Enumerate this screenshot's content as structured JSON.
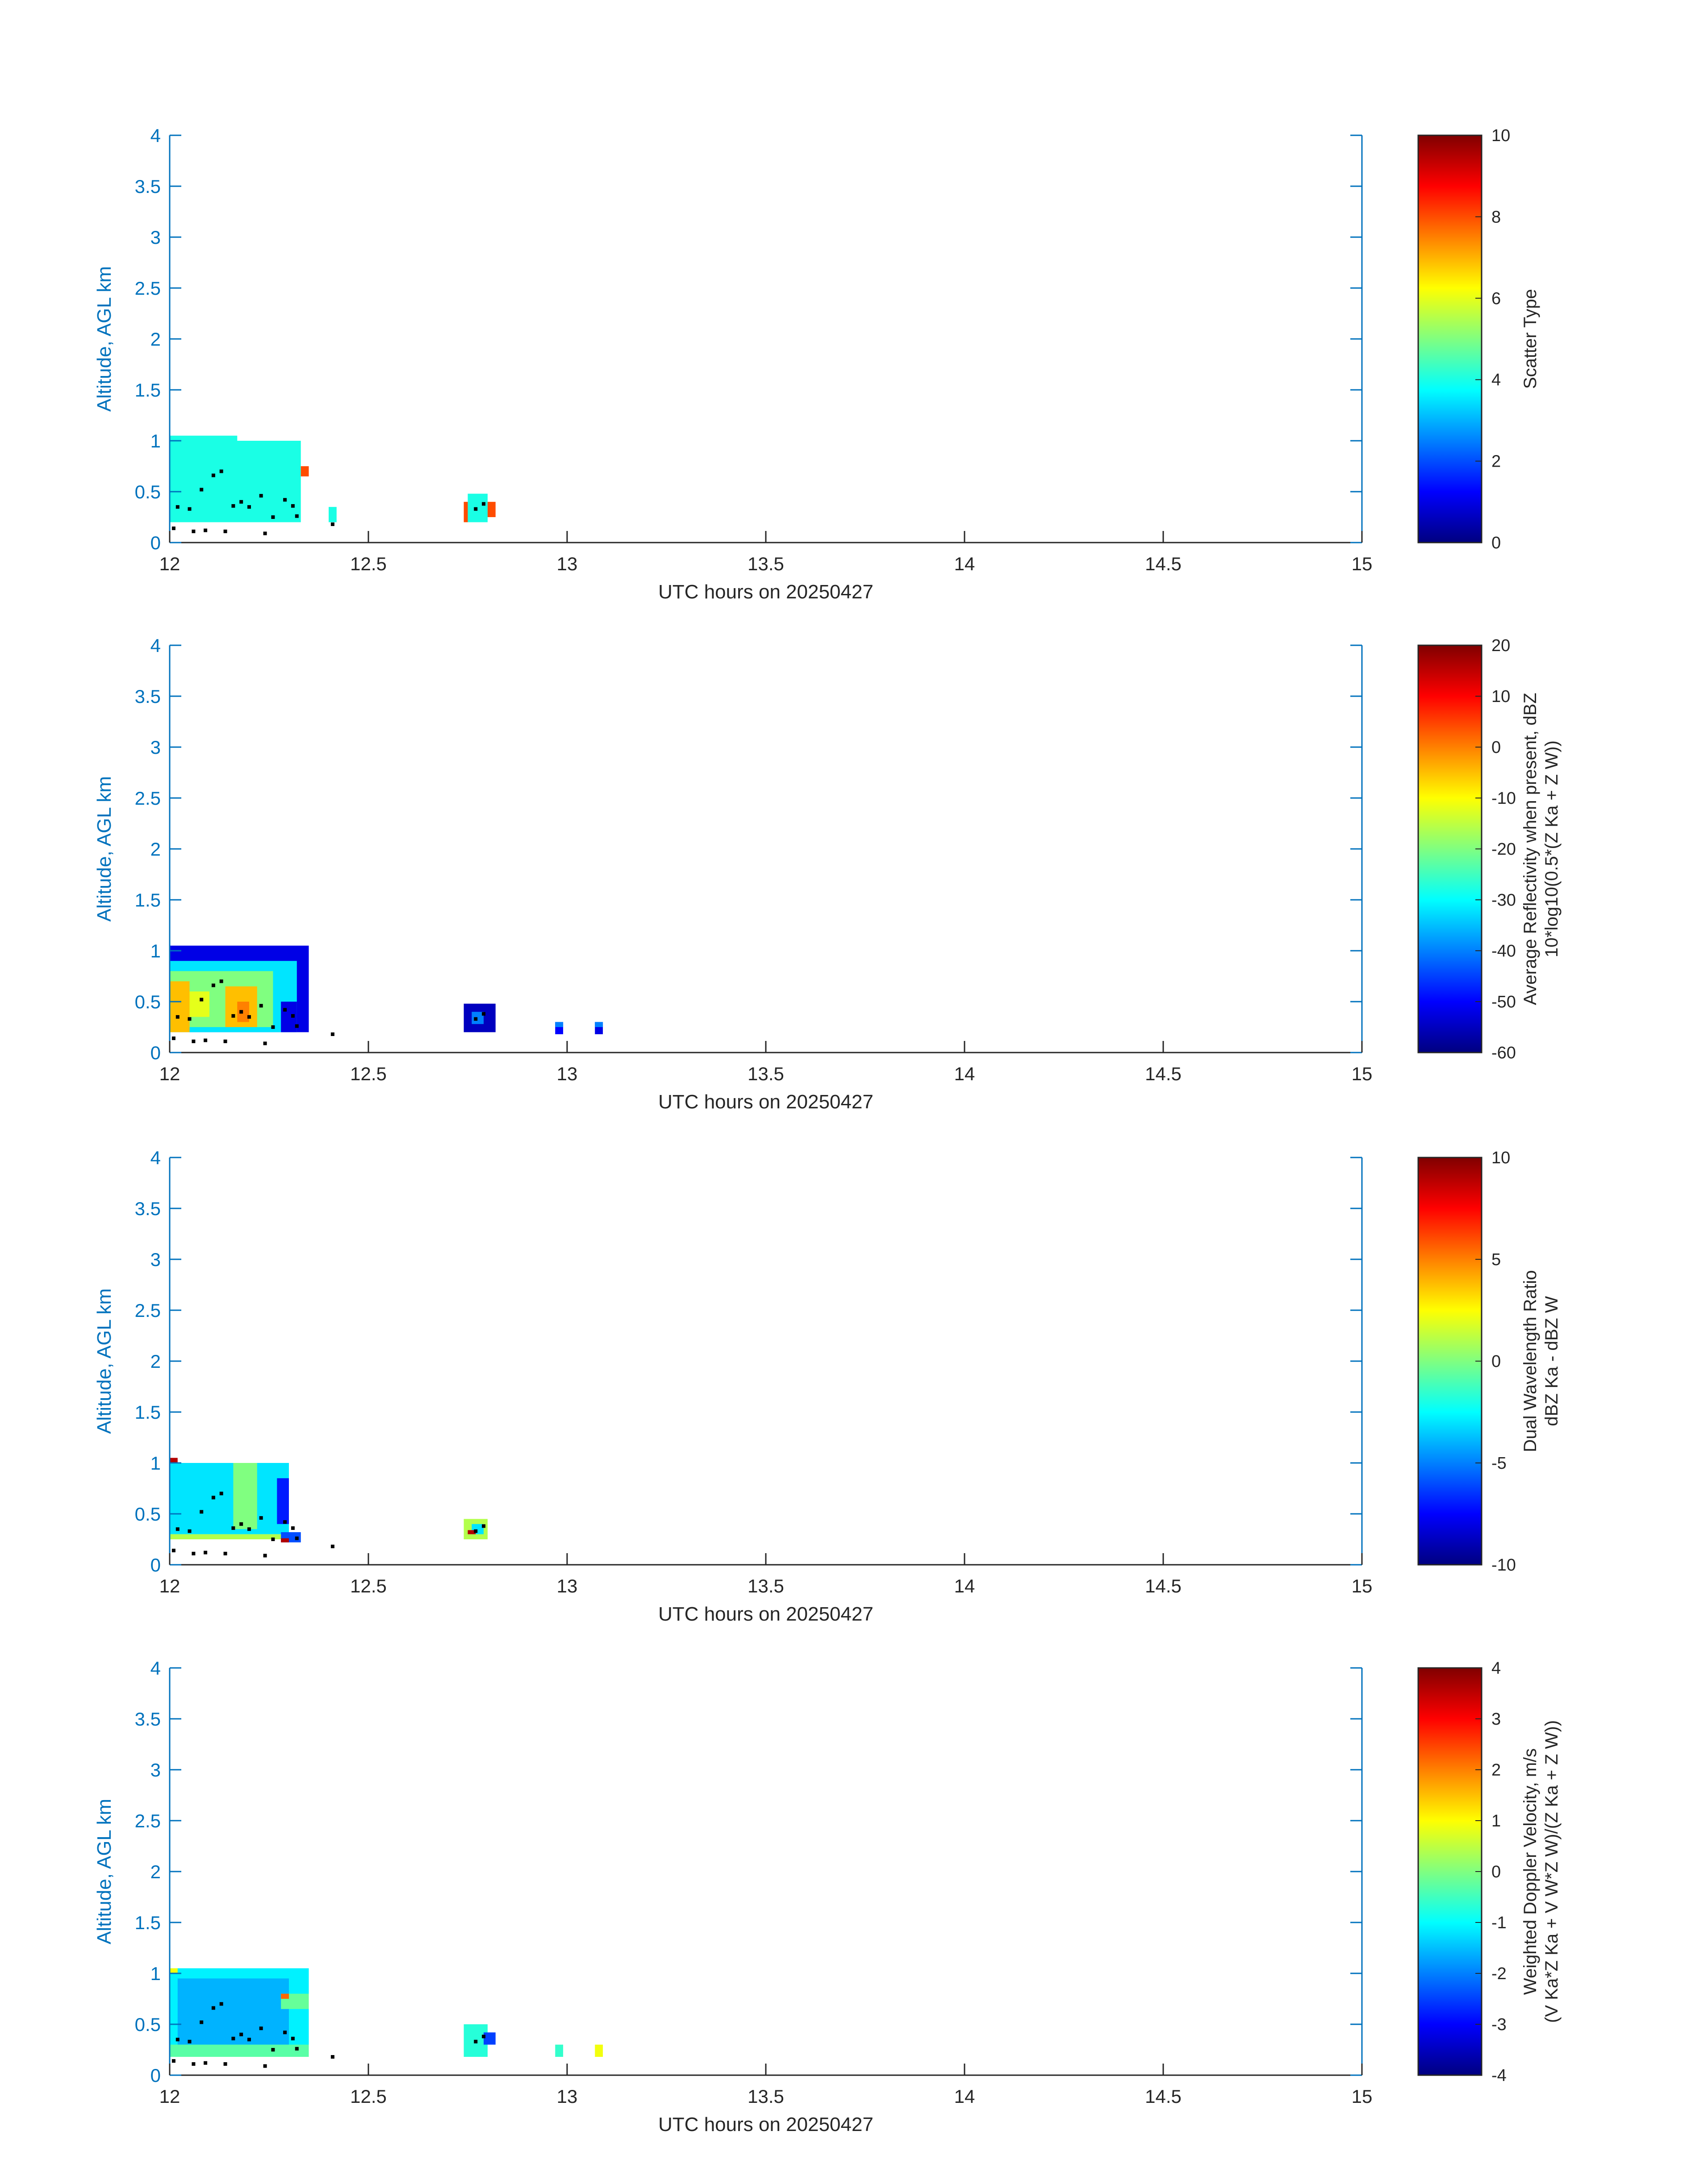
{
  "colors": {
    "axis_blue": "#0072BD",
    "text_dark": "#262626",
    "marker": "#000000"
  },
  "chart_data": [
    {
      "type": "heatmap",
      "colormap": "jet",
      "xlabel": "UTC hours on 20250427",
      "ylabel": "Altitude, AGL km",
      "xlim": [
        12,
        15
      ],
      "ylim": [
        0,
        4
      ],
      "xticks": [
        "12",
        "12.5",
        "13",
        "13.5",
        "14",
        "14.5",
        "15"
      ],
      "yticks": [
        "0",
        "0.5",
        "1",
        "1.5",
        "2",
        "2.5",
        "3",
        "3.5",
        "4"
      ],
      "clim": [
        0,
        10
      ],
      "colorbar_ticks": [
        "0",
        "2",
        "4",
        "6",
        "8",
        "10"
      ],
      "colorbar_label": [
        "Scatter Type"
      ],
      "cells": [
        [
          12.0,
          12.33,
          0.2,
          1.0,
          4
        ],
        [
          12.0,
          12.17,
          1.0,
          1.05,
          4
        ],
        [
          12.33,
          12.35,
          0.65,
          0.75,
          8
        ],
        [
          12.4,
          12.42,
          0.2,
          0.35,
          4
        ],
        [
          12.75,
          12.8,
          0.2,
          0.48,
          4
        ],
        [
          12.74,
          12.75,
          0.2,
          0.4,
          8
        ],
        [
          12.8,
          12.82,
          0.25,
          0.4,
          8
        ]
      ],
      "points": [
        [
          12.01,
          0.14
        ],
        [
          12.06,
          0.11
        ],
        [
          12.09,
          0.12
        ],
        [
          12.14,
          0.11
        ],
        [
          12.24,
          0.09
        ],
        [
          12.41,
          0.18
        ],
        [
          12.02,
          0.35
        ],
        [
          12.05,
          0.33
        ],
        [
          12.08,
          0.52
        ],
        [
          12.11,
          0.66
        ],
        [
          12.13,
          0.7
        ],
        [
          12.16,
          0.36
        ],
        [
          12.18,
          0.4
        ],
        [
          12.2,
          0.35
        ],
        [
          12.23,
          0.46
        ],
        [
          12.26,
          0.25
        ],
        [
          12.29,
          0.42
        ],
        [
          12.31,
          0.36
        ],
        [
          12.32,
          0.26
        ],
        [
          12.77,
          0.33
        ],
        [
          12.79,
          0.38
        ]
      ]
    },
    {
      "type": "heatmap",
      "colormap": "jet",
      "xlabel": "UTC hours on 20250427",
      "ylabel": "Altitude, AGL km",
      "xlim": [
        12,
        15
      ],
      "ylim": [
        0,
        4
      ],
      "xticks": [
        "12",
        "12.5",
        "13",
        "13.5",
        "14",
        "14.5",
        "15"
      ],
      "yticks": [
        "0",
        "0.5",
        "1",
        "1.5",
        "2",
        "2.5",
        "3",
        "3.5",
        "4"
      ],
      "clim": [
        -60,
        20
      ],
      "colorbar_ticks": [
        "-60",
        "-50",
        "-40",
        "-30",
        "-20",
        "-10",
        "0",
        "10",
        "20"
      ],
      "colorbar_label": [
        "Average Reflectivity when present, dBZ",
        "10*log10(0.5*(Z Ka + Z W))"
      ],
      "cells": [
        [
          12.0,
          12.35,
          0.2,
          1.05,
          -52
        ],
        [
          12.0,
          12.32,
          0.2,
          0.9,
          -32
        ],
        [
          12.0,
          12.26,
          0.25,
          0.8,
          -20
        ],
        [
          12.0,
          12.05,
          0.2,
          0.7,
          -5
        ],
        [
          12.05,
          12.1,
          0.35,
          0.6,
          -12
        ],
        [
          12.14,
          12.22,
          0.25,
          0.65,
          -5
        ],
        [
          12.17,
          12.2,
          0.3,
          0.5,
          0
        ],
        [
          12.28,
          12.32,
          0.2,
          0.5,
          -52
        ],
        [
          12.74,
          12.82,
          0.2,
          0.48,
          -55
        ],
        [
          12.76,
          12.79,
          0.28,
          0.4,
          -40
        ],
        [
          12.97,
          12.99,
          0.18,
          0.3,
          -50
        ],
        [
          12.97,
          12.99,
          0.25,
          0.3,
          -40
        ],
        [
          13.07,
          13.09,
          0.18,
          0.3,
          -52
        ],
        [
          13.07,
          13.09,
          0.25,
          0.3,
          -40
        ]
      ],
      "points": [
        [
          12.01,
          0.14
        ],
        [
          12.06,
          0.11
        ],
        [
          12.09,
          0.12
        ],
        [
          12.14,
          0.11
        ],
        [
          12.24,
          0.09
        ],
        [
          12.41,
          0.18
        ],
        [
          12.02,
          0.35
        ],
        [
          12.05,
          0.33
        ],
        [
          12.08,
          0.52
        ],
        [
          12.11,
          0.66
        ],
        [
          12.13,
          0.7
        ],
        [
          12.16,
          0.36
        ],
        [
          12.18,
          0.4
        ],
        [
          12.2,
          0.35
        ],
        [
          12.23,
          0.46
        ],
        [
          12.26,
          0.25
        ],
        [
          12.29,
          0.42
        ],
        [
          12.31,
          0.36
        ],
        [
          12.32,
          0.26
        ],
        [
          12.77,
          0.33
        ],
        [
          12.79,
          0.38
        ]
      ]
    },
    {
      "type": "heatmap",
      "colormap": "jet",
      "xlabel": "UTC hours on 20250427",
      "ylabel": "Altitude, AGL km",
      "xlim": [
        12,
        15
      ],
      "ylim": [
        0,
        4
      ],
      "xticks": [
        "12",
        "12.5",
        "13",
        "13.5",
        "14",
        "14.5",
        "15"
      ],
      "yticks": [
        "0",
        "0.5",
        "1",
        "1.5",
        "2",
        "2.5",
        "3",
        "3.5",
        "4"
      ],
      "clim": [
        -10,
        10
      ],
      "colorbar_ticks": [
        "-10",
        "-5",
        "0",
        "5",
        "10"
      ],
      "colorbar_label": [
        "Dual Wavelength Ratio",
        "dBZ Ka - dBZ W"
      ],
      "cells": [
        [
          12.0,
          12.3,
          0.3,
          1.0,
          -3
        ],
        [
          12.0,
          12.3,
          0.25,
          0.3,
          1
        ],
        [
          12.0,
          12.02,
          1.0,
          1.05,
          9
        ],
        [
          12.16,
          12.22,
          0.35,
          1.0,
          0
        ],
        [
          12.27,
          12.3,
          0.4,
          0.85,
          -7
        ],
        [
          12.28,
          12.33,
          0.22,
          0.32,
          -6
        ],
        [
          12.28,
          12.3,
          0.22,
          0.26,
          9
        ],
        [
          12.74,
          12.8,
          0.25,
          0.45,
          1
        ],
        [
          12.76,
          12.79,
          0.3,
          0.4,
          -3
        ],
        [
          12.75,
          12.77,
          0.3,
          0.34,
          9
        ]
      ],
      "points": [
        [
          12.01,
          0.14
        ],
        [
          12.06,
          0.11
        ],
        [
          12.09,
          0.12
        ],
        [
          12.14,
          0.11
        ],
        [
          12.24,
          0.09
        ],
        [
          12.41,
          0.18
        ],
        [
          12.02,
          0.35
        ],
        [
          12.05,
          0.33
        ],
        [
          12.08,
          0.52
        ],
        [
          12.11,
          0.66
        ],
        [
          12.13,
          0.7
        ],
        [
          12.16,
          0.36
        ],
        [
          12.18,
          0.4
        ],
        [
          12.2,
          0.35
        ],
        [
          12.23,
          0.46
        ],
        [
          12.26,
          0.25
        ],
        [
          12.29,
          0.42
        ],
        [
          12.31,
          0.36
        ],
        [
          12.32,
          0.26
        ],
        [
          12.77,
          0.33
        ],
        [
          12.79,
          0.38
        ]
      ]
    },
    {
      "type": "heatmap",
      "colormap": "jet",
      "xlabel": "UTC hours on 20250427",
      "ylabel": "Altitude, AGL km",
      "xlim": [
        12,
        15
      ],
      "ylim": [
        0,
        4
      ],
      "xticks": [
        "12",
        "12.5",
        "13",
        "13.5",
        "14",
        "14.5",
        "15"
      ],
      "yticks": [
        "0",
        "0.5",
        "1",
        "1.5",
        "2",
        "2.5",
        "3",
        "3.5",
        "4"
      ],
      "clim": [
        -4,
        4
      ],
      "colorbar_ticks": [
        "-4",
        "-3",
        "-2",
        "-1",
        "0",
        "1",
        "2",
        "3",
        "4"
      ],
      "colorbar_label": [
        "Weighted Doppler Velocity, m/s",
        "(V Ka*Z Ka + V W*Z W)/(Z Ka + Z W))"
      ],
      "cells": [
        [
          12.0,
          12.35,
          0.2,
          1.05,
          -1.1
        ],
        [
          12.02,
          12.3,
          0.3,
          0.95,
          -1.6
        ],
        [
          12.0,
          12.35,
          0.18,
          0.3,
          -0.3
        ],
        [
          12.0,
          12.02,
          1.0,
          1.05,
          0.9
        ],
        [
          12.28,
          12.35,
          0.65,
          0.8,
          -0.2
        ],
        [
          12.28,
          12.3,
          0.75,
          0.8,
          2.2
        ],
        [
          12.74,
          12.8,
          0.18,
          0.5,
          -0.7
        ],
        [
          12.79,
          12.82,
          0.3,
          0.42,
          -2.5
        ],
        [
          12.97,
          12.99,
          0.18,
          0.3,
          -0.6
        ],
        [
          13.07,
          13.09,
          0.18,
          0.3,
          0.9
        ]
      ],
      "points": [
        [
          12.01,
          0.14
        ],
        [
          12.06,
          0.11
        ],
        [
          12.09,
          0.12
        ],
        [
          12.14,
          0.11
        ],
        [
          12.24,
          0.09
        ],
        [
          12.41,
          0.18
        ],
        [
          12.02,
          0.35
        ],
        [
          12.05,
          0.33
        ],
        [
          12.08,
          0.52
        ],
        [
          12.11,
          0.66
        ],
        [
          12.13,
          0.7
        ],
        [
          12.16,
          0.36
        ],
        [
          12.18,
          0.4
        ],
        [
          12.2,
          0.35
        ],
        [
          12.23,
          0.46
        ],
        [
          12.26,
          0.25
        ],
        [
          12.29,
          0.42
        ],
        [
          12.31,
          0.36
        ],
        [
          12.32,
          0.26
        ],
        [
          12.77,
          0.33
        ],
        [
          12.79,
          0.38
        ]
      ]
    }
  ]
}
